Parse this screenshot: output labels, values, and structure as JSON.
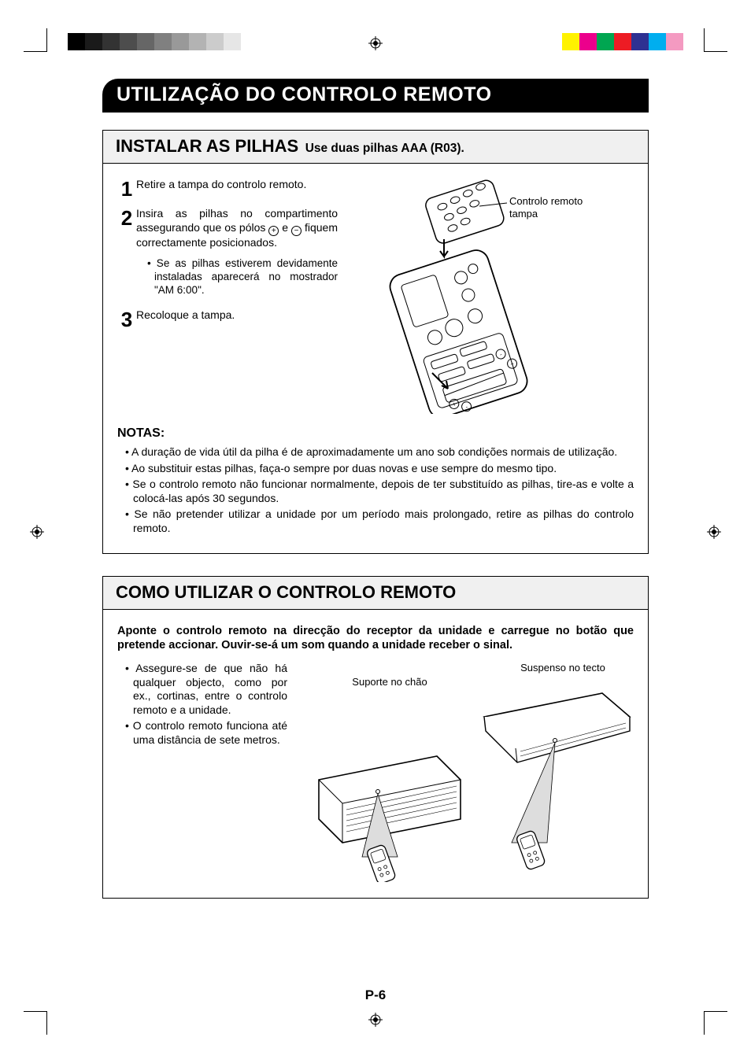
{
  "print_gray_swatches": [
    "#000000",
    "#1a1a1a",
    "#333333",
    "#4d4d4d",
    "#666666",
    "#808080",
    "#999999",
    "#b3b3b3",
    "#cccccc",
    "#e6e6e6"
  ],
  "print_color_swatches": [
    "#fff200",
    "#ec008c",
    "#00a651",
    "#ed1c24",
    "#2e3192",
    "#00aeef",
    "#f49ac1"
  ],
  "main_title": "UTILIZAÇÃO DO CONTROLO REMOTO",
  "section1": {
    "heading_main": "INSTALAR AS PILHAS",
    "heading_sub": "Use duas pilhas AAA (R03).",
    "steps": [
      {
        "n": "1",
        "text": "Retire a tampa do controlo remoto."
      },
      {
        "n": "2",
        "text": "Insira as pilhas no compartimento assegurando que os pólos ⊕ e ⊖ fiquem correctamente posicionados.",
        "sub": "• Se as pilhas estiverem devidamente instaladas aparecerá no mostrador \"AM 6:00\"."
      },
      {
        "n": "3",
        "text": "Recoloque a tampa."
      }
    ],
    "diagram_caption": "Controlo remoto tampa",
    "notes_heading": "NOTAS:",
    "notes": [
      "A duração de vida útil da pilha é de aproximadamente um ano sob condições normais de utilização.",
      "Ao substituir estas pilhas, faça-o sempre por duas novas e use sempre do mesmo tipo.",
      "Se o controlo remoto não funcionar normalmente, depois de ter substituído as pilhas, tire-as e volte a colocá-las após 30 segundos.",
      "Se não pretender utilizar a unidade por um período mais prolongado, retire as pilhas do controlo remoto."
    ]
  },
  "section2": {
    "heading_main": "COMO UTILIZAR O CONTROLO REMOTO",
    "intro": "Aponte o controlo remoto na direcção do receptor da unidade e carregue no botão que pretende accionar. Ouvir-se-á um som quando a unidade receber o sinal.",
    "bullets": [
      "Assegure-se de que não há qualquer objecto, como por ex., cortinas, entre o controlo remoto e a unidade.",
      "O controlo remoto funciona até uma distância de sete metros."
    ],
    "fig_floor_label": "Suporte no chão",
    "fig_ceiling_label": "Suspenso no tecto"
  },
  "page_number": "P-6"
}
